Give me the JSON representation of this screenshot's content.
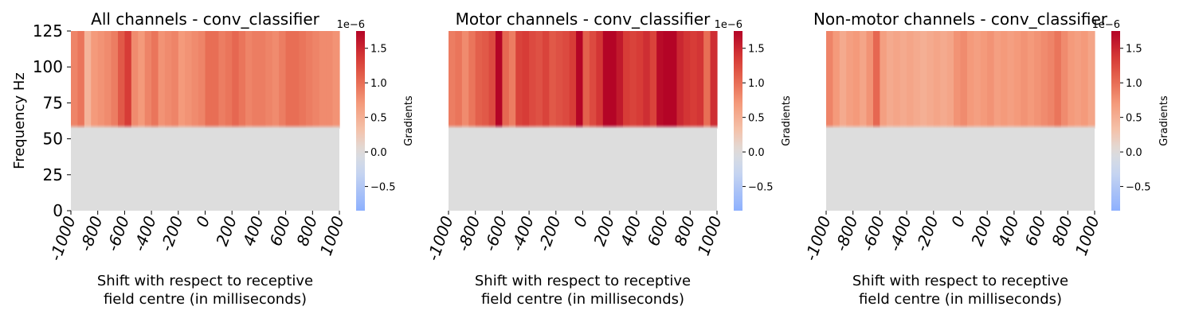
{
  "chart_data": [
    {
      "type": "heatmap",
      "title": "All channels - conv_classifier",
      "xlabel": "Shift with respect to receptive\nfield centre (in milliseconds)",
      "ylabel": "Frequency Hz",
      "x_ticks": [
        "-1000",
        "-800",
        "-600",
        "-400",
        "-200",
        "0",
        "200",
        "400",
        "600",
        "800",
        "1000"
      ],
      "y_ticks": [
        "0",
        "25",
        "50",
        "75",
        "100",
        "125"
      ],
      "xlim": [
        -1000,
        1000
      ],
      "ylim": [
        0,
        125
      ],
      "colorbar": {
        "label": "Gradients",
        "exponent": "1e−6",
        "range": [
          -0.85,
          1.75
        ],
        "ticks": [
          "−0.5",
          "0.0",
          "0.5",
          "1.0",
          "1.5"
        ],
        "tick_values": [
          -0.5,
          0.0,
          0.5,
          1.0,
          1.5
        ]
      },
      "colormap": "coolwarm",
      "low_band": {
        "freq_max": 57,
        "value": 0.0
      },
      "high_band": {
        "freq_min": 60,
        "shift_ms": [
          -975,
          -925,
          -875,
          -825,
          -775,
          -725,
          -675,
          -625,
          -575,
          -525,
          -475,
          -425,
          -375,
          -325,
          -275,
          -225,
          -175,
          -125,
          -75,
          -25,
          25,
          75,
          125,
          175,
          225,
          275,
          325,
          375,
          425,
          475,
          525,
          575,
          625,
          675,
          725,
          775,
          825,
          875,
          925,
          975
        ],
        "values": [
          0.85,
          0.95,
          0.45,
          0.7,
          0.75,
          0.8,
          0.9,
          1.15,
          1.35,
          0.8,
          0.7,
          0.85,
          0.95,
          0.75,
          0.8,
          0.85,
          0.7,
          0.75,
          0.8,
          0.85,
          1.0,
          1.0,
          0.9,
          0.95,
          1.05,
          0.95,
          0.85,
          0.9,
          0.9,
          0.85,
          0.8,
          0.9,
          1.0,
          1.0,
          0.95,
          0.9,
          0.85,
          0.8,
          0.8,
          0.75
        ]
      }
    },
    {
      "type": "heatmap",
      "title": "Motor channels - conv_classifier",
      "xlabel": "Shift with respect to receptive\nfield centre (in milliseconds)",
      "ylabel": "",
      "x_ticks": [
        "-1000",
        "-800",
        "-600",
        "-400",
        "-200",
        "0",
        "200",
        "400",
        "600",
        "800",
        "1000"
      ],
      "y_ticks": [],
      "xlim": [
        -1000,
        1000
      ],
      "ylim": [
        0,
        125
      ],
      "colorbar": {
        "label": "Gradients",
        "exponent": "1e−6",
        "range": [
          -0.85,
          1.75
        ],
        "ticks": [
          "−0.5",
          "0.0",
          "0.5",
          "1.0",
          "1.5"
        ],
        "tick_values": [
          -0.5,
          0.0,
          0.5,
          1.0,
          1.5
        ]
      },
      "colormap": "coolwarm",
      "low_band": {
        "freq_max": 57,
        "value": 0.0
      },
      "high_band": {
        "freq_min": 60,
        "shift_ms": [
          -975,
          -925,
          -875,
          -825,
          -775,
          -725,
          -675,
          -625,
          -575,
          -525,
          -475,
          -425,
          -375,
          -325,
          -275,
          -225,
          -175,
          -125,
          -75,
          -25,
          25,
          75,
          125,
          175,
          225,
          275,
          325,
          375,
          425,
          475,
          525,
          575,
          625,
          675,
          725,
          775,
          825,
          875,
          925,
          975
        ],
        "values": [
          0.9,
          0.95,
          0.8,
          0.95,
          1.1,
          1.15,
          1.25,
          1.85,
          1.05,
          0.9,
          1.3,
          1.35,
          1.25,
          1.2,
          1.3,
          1.15,
          1.2,
          1.25,
          1.35,
          1.8,
          1.1,
          1.25,
          1.4,
          1.9,
          1.85,
          1.6,
          1.35,
          1.3,
          1.35,
          1.45,
          1.3,
          1.7,
          1.75,
          1.85,
          1.5,
          1.4,
          1.35,
          1.4,
          1.0,
          1.45
        ]
      }
    },
    {
      "type": "heatmap",
      "title": "Non-motor channels - conv_classifier",
      "xlabel": "Shift with respect to receptive\nfield centre (in milliseconds)",
      "ylabel": "",
      "x_ticks": [
        "-1000",
        "-800",
        "-600",
        "-400",
        "-200",
        "0",
        "200",
        "400",
        "600",
        "800",
        "1000"
      ],
      "y_ticks": [],
      "xlim": [
        -1000,
        1000
      ],
      "ylim": [
        0,
        125
      ],
      "colorbar": {
        "label": "Gradients",
        "exponent": "1e−6",
        "range": [
          -0.85,
          1.75
        ],
        "ticks": [
          "−0.5",
          "0.0",
          "0.5",
          "1.0",
          "1.5"
        ],
        "tick_values": [
          -0.5,
          0.0,
          0.5,
          1.0,
          1.5
        ]
      },
      "colormap": "coolwarm",
      "low_band": {
        "freq_max": 57,
        "value": 0.0
      },
      "high_band": {
        "freq_min": 60,
        "shift_ms": [
          -975,
          -925,
          -875,
          -825,
          -775,
          -725,
          -675,
          -625,
          -575,
          -525,
          -475,
          -425,
          -375,
          -325,
          -275,
          -225,
          -175,
          -125,
          -75,
          -25,
          25,
          75,
          125,
          175,
          225,
          275,
          325,
          375,
          425,
          475,
          525,
          575,
          625,
          675,
          725,
          775,
          825,
          875,
          925,
          975
        ],
        "values": [
          0.85,
          0.7,
          0.55,
          0.65,
          0.7,
          0.6,
          0.75,
          1.05,
          0.65,
          0.55,
          0.6,
          0.55,
          0.6,
          0.55,
          0.5,
          0.55,
          0.6,
          0.55,
          0.6,
          0.75,
          0.8,
          0.7,
          0.65,
          0.7,
          0.75,
          0.65,
          0.7,
          0.65,
          0.7,
          0.75,
          0.7,
          0.75,
          0.8,
          0.85,
          0.95,
          0.8,
          0.7,
          0.65,
          0.7,
          0.6
        ]
      }
    }
  ]
}
